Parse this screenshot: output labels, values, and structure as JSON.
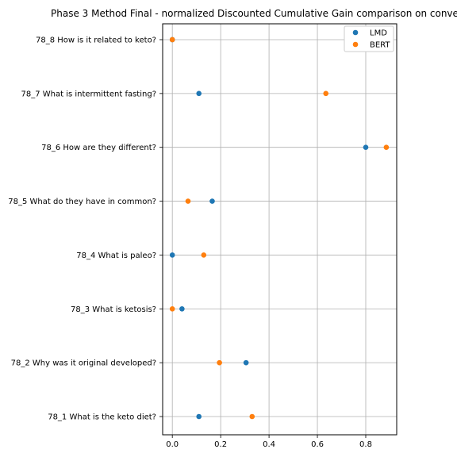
{
  "chart_data": {
    "type": "scatter",
    "title": "Phase 3 Method Final - normalized Discounted Cumulative Gain comparison on conve",
    "xlabel": "",
    "ylabel": "",
    "xlim": [
      -0.04,
      0.928
    ],
    "xticks": [
      0.0,
      0.2,
      0.4,
      0.6,
      0.8
    ],
    "xtick_labels": [
      "0.0",
      "0.2",
      "0.4",
      "0.6",
      "0.8"
    ],
    "grid": true,
    "legend_position": "upper right",
    "categories": [
      "78_1 What is the keto diet?",
      "78_2 Why was it original developed?",
      "78_3 What is ketosis?",
      "78_4 What is paleo?",
      "78_5 What do they have in common?",
      "78_6 How are they different?",
      "78_7 What is intermittent fasting?",
      "78_8 How is it related to keto?"
    ],
    "series": [
      {
        "name": "LMD",
        "color": "#1f77b4",
        "values": [
          0.11,
          0.305,
          0.04,
          0.0,
          0.165,
          0.8,
          0.11,
          0.0
        ]
      },
      {
        "name": "BERT",
        "color": "#ff7f0e",
        "values": [
          0.33,
          0.195,
          0.0,
          0.13,
          0.065,
          0.885,
          0.635,
          0.0
        ]
      }
    ]
  }
}
